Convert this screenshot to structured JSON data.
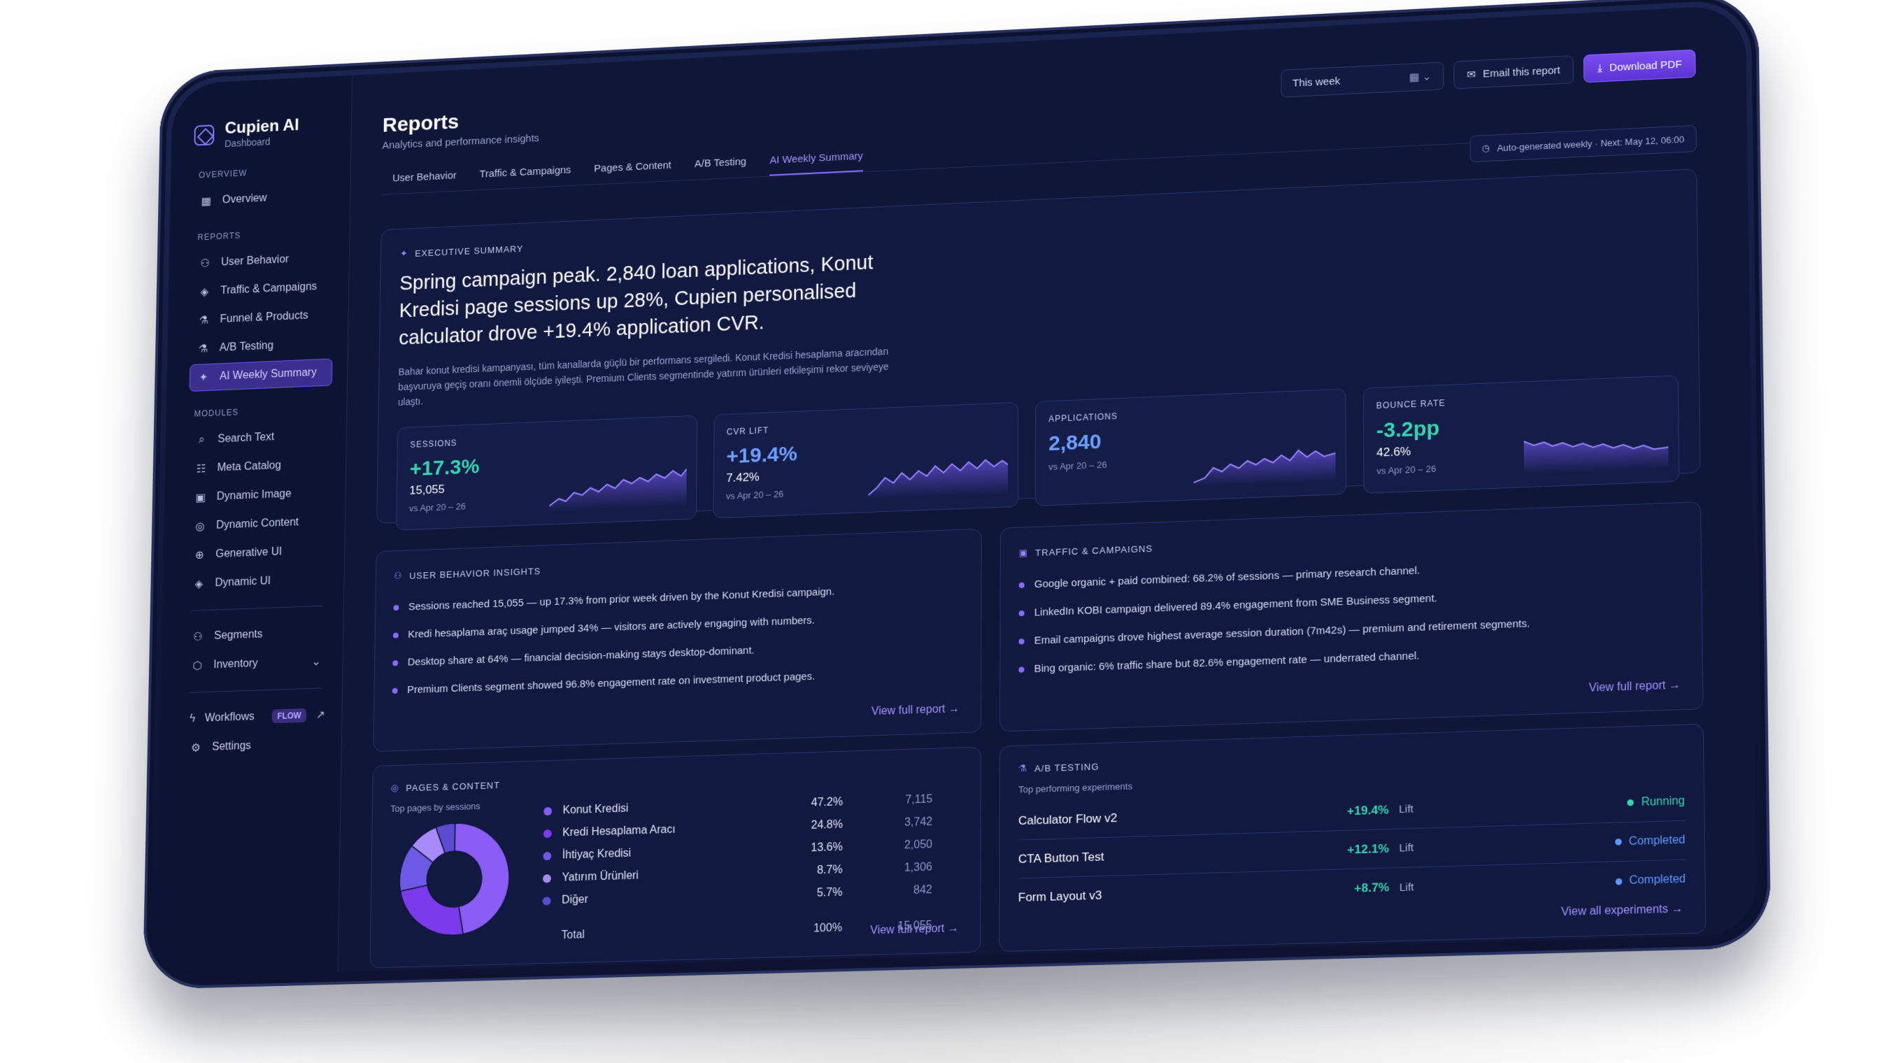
{
  "brand": {
    "name": "Cupien AI",
    "sub": "Dashboard"
  },
  "sidebar": {
    "overview_label": "OVERVIEW",
    "overview": [
      {
        "label": "Overview",
        "icon": "grid-icon"
      }
    ],
    "reports_label": "REPORTS",
    "reports": [
      {
        "label": "User Behavior",
        "icon": "users-icon"
      },
      {
        "label": "Traffic & Campaigns",
        "icon": "layers-icon"
      },
      {
        "label": "Funnel & Products",
        "icon": "flask-icon"
      },
      {
        "label": "A/B Testing",
        "icon": "flask-icon"
      },
      {
        "label": "AI Weekly Summary",
        "icon": "sparkles-icon"
      }
    ],
    "modules_label": "MODULES",
    "modules": [
      {
        "label": "Search Text",
        "icon": "search-icon"
      },
      {
        "label": "Meta Catalog",
        "icon": "catalog-icon"
      },
      {
        "label": "Dynamic Image",
        "icon": "image-icon"
      },
      {
        "label": "Dynamic Content",
        "icon": "content-icon"
      },
      {
        "label": "Generative UI",
        "icon": "generative-icon"
      },
      {
        "label": "Dynamic UI",
        "icon": "layers-icon"
      }
    ],
    "segments": "Segments",
    "inventory": "Inventory",
    "workflows": "Workflows",
    "flow_badge": "FLOW",
    "settings": "Settings"
  },
  "header": {
    "title": "Reports",
    "subtitle": "Analytics and performance insights",
    "period": "This week",
    "email_btn": "Email this report",
    "download_btn": "Download PDF"
  },
  "tabs": [
    "User Behavior",
    "Traffic & Campaigns",
    "Pages & Content",
    "A/B Testing",
    "AI Weekly Summary"
  ],
  "auto_note": "Auto-generated weekly · Next: May 12, 06:00",
  "exec": {
    "label": "EXECUTIVE SUMMARY",
    "headline": "Spring campaign peak. 2,840 loan applications, Konut Kredisi page sessions up 28%, Cupien personalised calculator drove +19.4% application CVR.",
    "body": "Bahar konut kredisi kampanyası, tüm kanallarda güçlü bir performans sergiledi. Konut Kredisi hesaplama aracından başvuruya geçiş oranı önemli ölçüde iyileşti. Premium Clients segmentinde yatırım ürünleri etkileşimi rekor seviyeye ulaştı."
  },
  "kpis": [
    {
      "label": "SESSIONS",
      "value": "+17.3%",
      "secondary": "15,055",
      "compare": "vs Apr 20 – 26",
      "color": "teal"
    },
    {
      "label": "CVR LIFT",
      "value": "+19.4%",
      "secondary": "7.42%",
      "compare": "vs Apr 20 – 26",
      "color": "blue"
    },
    {
      "label": "APPLICATIONS",
      "value": "2,840",
      "secondary": "",
      "compare": "vs Apr 20 – 26",
      "color": "blue"
    },
    {
      "label": "BOUNCE RATE",
      "value": "-3.2pp",
      "secondary": "42.6%",
      "compare": "vs Apr 20 – 26",
      "color": "teal"
    }
  ],
  "user_behavior": {
    "label": "USER BEHAVIOR INSIGHTS",
    "items": [
      "Sessions reached 15,055 — up 17.3% from prior week driven by the Konut Kredisi campaign.",
      "Kredi hesaplama araç usage jumped 34% — visitors are actively engaging with numbers.",
      "Desktop share at 64% — financial decision-making stays desktop-dominant.",
      "Premium Clients segment showed 96.8% engagement rate on investment product pages."
    ],
    "link": "View full report →"
  },
  "traffic": {
    "label": "TRAFFIC & CAMPAIGNS",
    "items": [
      "Google organic + paid combined: 68.2% of sessions — primary research channel.",
      "LinkedIn KOBI campaign delivered 89.4% engagement from SME Business segment.",
      "Email campaigns drove highest average session duration (7m42s) — premium and retirement segments.",
      "Bing organic: 6% traffic share but 82.6% engagement rate — underrated channel."
    ],
    "link": "View full report →"
  },
  "pages": {
    "label": "PAGES & CONTENT",
    "subtitle": "Top pages by sessions",
    "rows": [
      {
        "name": "Konut Kredisi",
        "pct": "47.2%",
        "sessions": "7,115",
        "share": 47.2,
        "color": "#8b5cf6"
      },
      {
        "name": "Kredi Hesaplama Aracı",
        "pct": "24.8%",
        "sessions": "3,742",
        "share": 24.8,
        "color": "#7c3aed"
      },
      {
        "name": "İhtiyaç Kredisi",
        "pct": "13.6%",
        "sessions": "2,050",
        "share": 13.6,
        "color": "#6d5ae6"
      },
      {
        "name": "Yatırım Ürünleri",
        "pct": "8.7%",
        "sessions": "1,306",
        "share": 8.7,
        "color": "#a78bfa"
      },
      {
        "name": "Diğer",
        "pct": "5.7%",
        "sessions": "842",
        "share": 5.7,
        "color": "#5b4bd1"
      }
    ],
    "total": {
      "name": "Total",
      "pct": "100%",
      "sessions": "15,055"
    },
    "link": "View full report →"
  },
  "ab": {
    "label": "A/B TESTING",
    "subtitle": "Top performing experiments",
    "rows": [
      {
        "name": "Calculator Flow v2",
        "lift": "+19.4%",
        "lift_label": "Lift",
        "status": "Running",
        "status_color": "#37d6b1"
      },
      {
        "name": "CTA Button Test",
        "lift": "+12.1%",
        "lift_label": "Lift",
        "status": "Completed",
        "status_color": "#5b9bff"
      },
      {
        "name": "Form Layout v3",
        "lift": "+8.7%",
        "lift_label": "Lift",
        "status": "Completed",
        "status_color": "#5b9bff"
      }
    ],
    "link": "View all experiments →"
  }
}
